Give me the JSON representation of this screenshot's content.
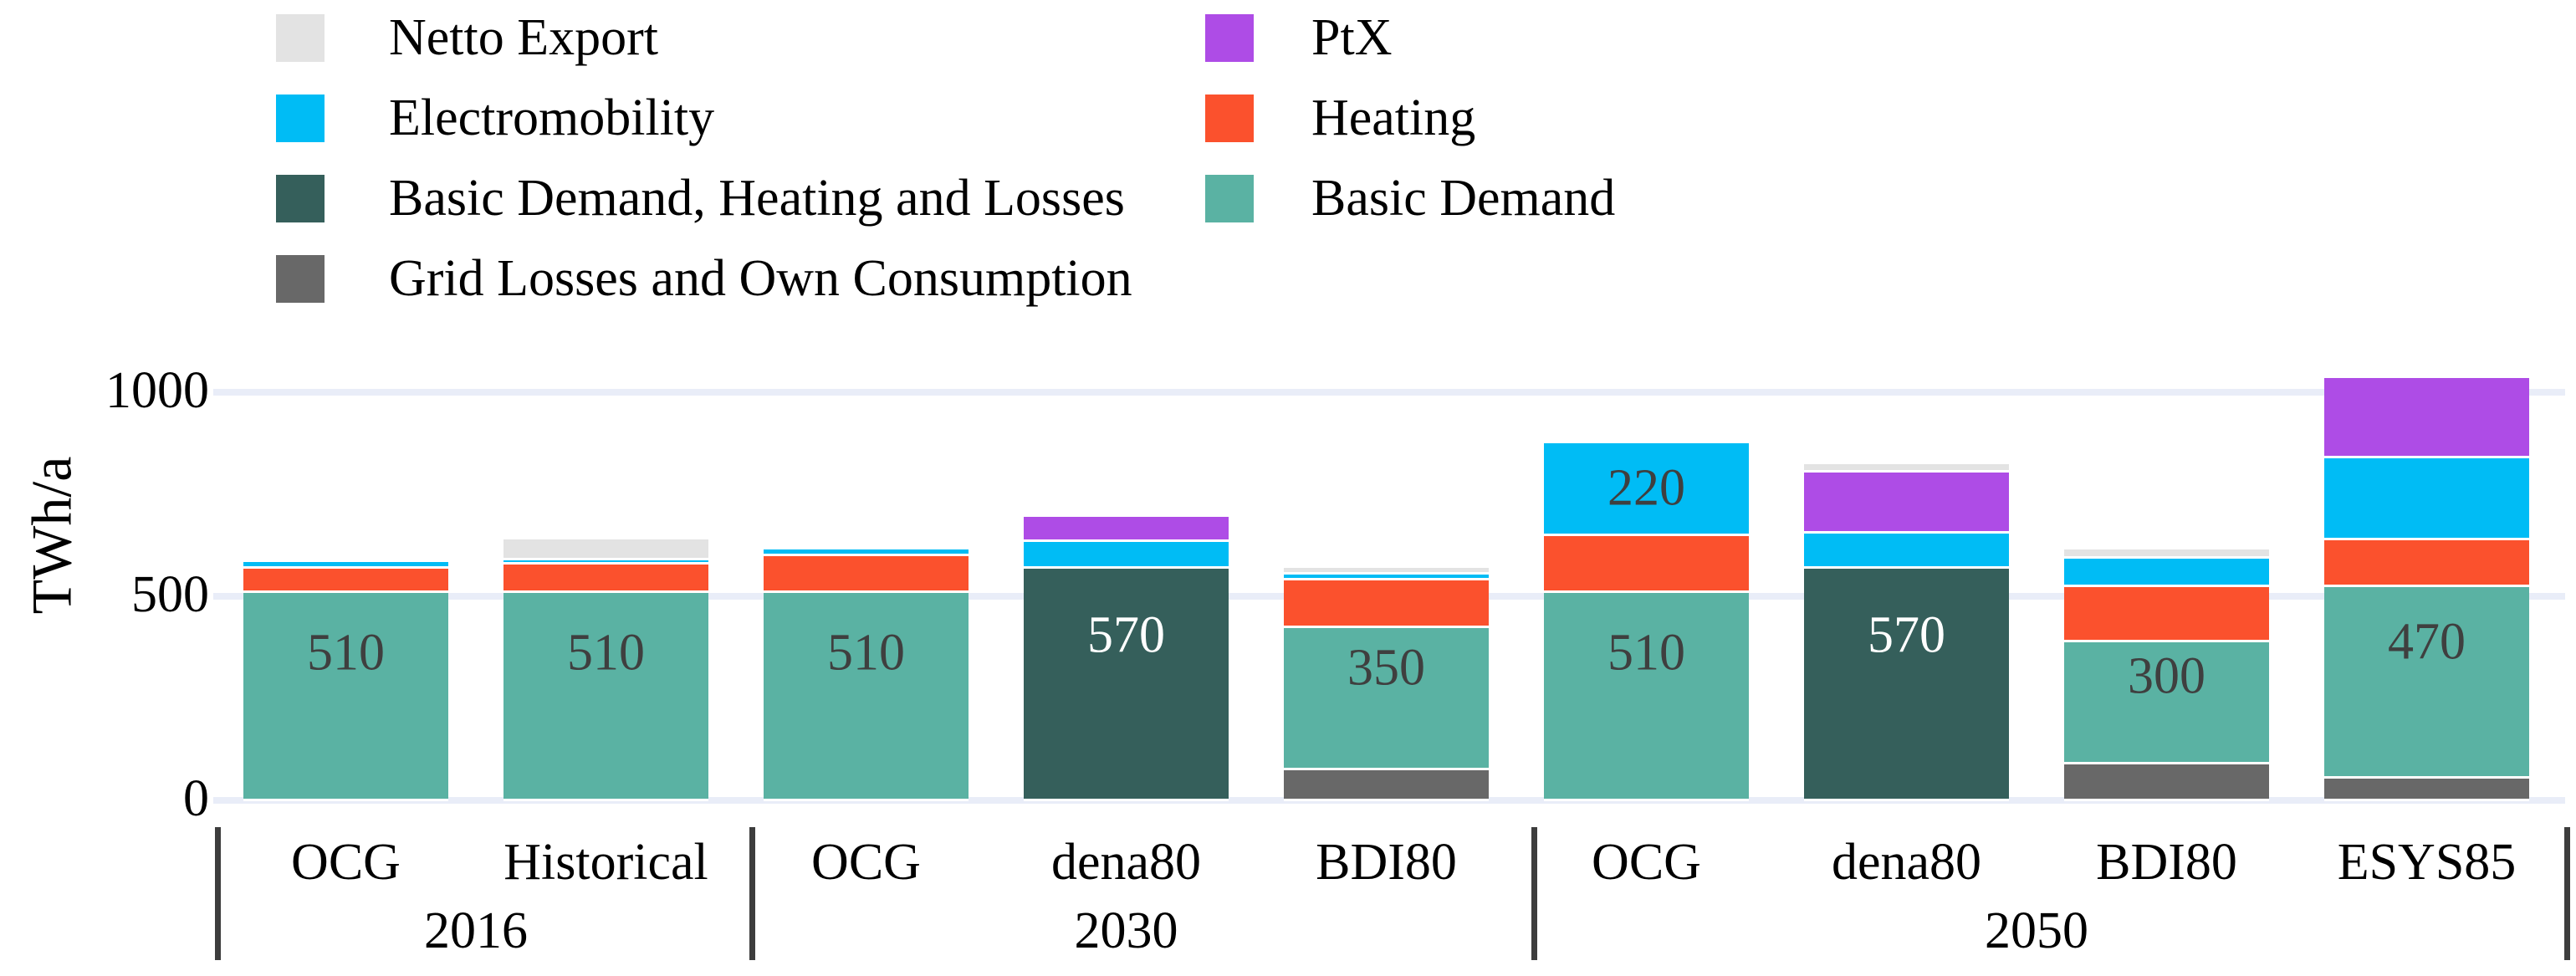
{
  "y_axis": {
    "title": "TWh/a",
    "ticks": [
      {
        "value": 0,
        "label": "0"
      },
      {
        "value": 500,
        "label": "500"
      },
      {
        "value": 1000,
        "label": "1000"
      }
    ]
  },
  "colors": {
    "netto": "#E3E3E3",
    "elec": "#00BCF5",
    "bdhl": "#355F5B",
    "grid": "#686868",
    "ptx": "#AE4CE6",
    "heating": "#FB512D",
    "basic": "#5AB2A3",
    "gridline": "#E9EDF8",
    "separator": "#3D3D3D",
    "value_label_dark": "#3F3F3F",
    "value_label_light": "#FFFFFF"
  },
  "legend": {
    "columns": [
      {
        "items": [
          {
            "key": "netto",
            "label": "Netto Export"
          },
          {
            "key": "elec",
            "label": "Electromobility"
          },
          {
            "key": "bdhl",
            "label": "Basic Demand, Heating and Losses"
          },
          {
            "key": "grid",
            "label": "Grid Losses and Own Consumption"
          }
        ]
      },
      {
        "items": [
          {
            "key": "ptx",
            "label": "PtX"
          },
          {
            "key": "heating",
            "label": "Heating"
          },
          {
            "key": "basic",
            "label": "Basic Demand"
          }
        ]
      }
    ]
  },
  "groups": [
    {
      "year": "2016",
      "bars": [
        {
          "label": "OCG",
          "segments": [
            {
              "key": "basic",
              "value": 510,
              "label": "510",
              "label_color": "#3F3F3F",
              "label_pos": "upper"
            },
            {
              "key": "heating",
              "value": 60
            },
            {
              "key": "elec",
              "value": 10
            }
          ]
        },
        {
          "label": "Historical",
          "segments": [
            {
              "key": "basic",
              "value": 510,
              "label": "510",
              "label_color": "#3F3F3F",
              "label_pos": "upper"
            },
            {
              "key": "heating",
              "value": 70
            },
            {
              "key": "elec",
              "value": 10
            },
            {
              "key": "netto",
              "value": 45
            }
          ]
        }
      ]
    },
    {
      "year": "2030",
      "bars": [
        {
          "label": "OCG",
          "segments": [
            {
              "key": "basic",
              "value": 510,
              "label": "510",
              "label_color": "#3F3F3F",
              "label_pos": "upper"
            },
            {
              "key": "heating",
              "value": 90
            },
            {
              "key": "elec",
              "value": 10
            }
          ]
        },
        {
          "label": "dena80",
          "segments": [
            {
              "key": "bdhl",
              "value": 570,
              "label": "570",
              "label_color": "#FFFFFF",
              "label_pos": "upper"
            },
            {
              "key": "elec",
              "value": 65
            },
            {
              "key": "ptx",
              "value": 55
            }
          ]
        },
        {
          "label": "BDI80",
          "segments": [
            {
              "key": "grid",
              "value": 75
            },
            {
              "key": "basic",
              "value": 350,
              "label": "350",
              "label_color": "#3F3F3F",
              "label_pos": "upper"
            },
            {
              "key": "heating",
              "value": 115
            },
            {
              "key": "elec",
              "value": 15
            },
            {
              "key": "netto",
              "value": 10
            }
          ]
        }
      ]
    },
    {
      "year": "2050",
      "bars": [
        {
          "label": "OCG",
          "segments": [
            {
              "key": "basic",
              "value": 510,
              "label": "510",
              "label_color": "#3F3F3F",
              "label_pos": "upper"
            },
            {
              "key": "heating",
              "value": 140
            },
            {
              "key": "elec",
              "value": 220,
              "label": "220",
              "label_color": "#3F3F3F",
              "label_pos": "center"
            }
          ]
        },
        {
          "label": "dena80",
          "segments": [
            {
              "key": "bdhl",
              "value": 570,
              "label": "570",
              "label_color": "#FFFFFF",
              "label_pos": "upper"
            },
            {
              "key": "elec",
              "value": 85
            },
            {
              "key": "ptx",
              "value": 150
            },
            {
              "key": "netto",
              "value": 15
            }
          ]
        },
        {
          "label": "BDI80",
          "segments": [
            {
              "key": "grid",
              "value": 90
            },
            {
              "key": "basic",
              "value": 300,
              "label": "300",
              "label_color": "#3F3F3F",
              "label_pos": "upper"
            },
            {
              "key": "heating",
              "value": 135
            },
            {
              "key": "elec",
              "value": 70
            },
            {
              "key": "netto",
              "value": 15
            }
          ]
        },
        {
          "label": "ESYS85",
          "segments": [
            {
              "key": "grid",
              "value": 55
            },
            {
              "key": "basic",
              "value": 470,
              "label": "470",
              "label_color": "#3F3F3F",
              "label_pos": "upper"
            },
            {
              "key": "heating",
              "value": 115
            },
            {
              "key": "elec",
              "value": 200
            },
            {
              "key": "ptx",
              "value": 190
            }
          ]
        }
      ]
    }
  ],
  "chart_data": {
    "type": "bar",
    "stacked": true,
    "title": "",
    "xlabel": "",
    "ylabel": "TWh/a",
    "ylim": [
      0,
      1000
    ],
    "grid": true,
    "legend_position": "top-left, two columns",
    "categories": [
      "OCG 2016",
      "Historical 2016",
      "OCG 2030",
      "dena80 2030",
      "BDI80 2030",
      "OCG 2050",
      "dena80 2050",
      "BDI80 2050",
      "ESYS85 2050"
    ],
    "group_years": [
      "2016",
      "2030",
      "2050"
    ],
    "series": [
      {
        "name": "Grid Losses and Own Consumption",
        "color": "#686868",
        "values": [
          0,
          0,
          0,
          0,
          75,
          0,
          0,
          90,
          55
        ]
      },
      {
        "name": "Basic Demand",
        "color": "#5AB2A3",
        "values": [
          510,
          510,
          510,
          0,
          350,
          510,
          0,
          300,
          470
        ]
      },
      {
        "name": "Basic Demand, Heating and Losses",
        "color": "#355F5B",
        "values": [
          0,
          0,
          0,
          570,
          0,
          0,
          570,
          0,
          0
        ]
      },
      {
        "name": "Heating",
        "color": "#FB512D",
        "values": [
          60,
          70,
          90,
          0,
          115,
          140,
          0,
          135,
          115
        ]
      },
      {
        "name": "Electromobility",
        "color": "#00BCF5",
        "values": [
          10,
          10,
          10,
          65,
          15,
          220,
          85,
          70,
          200
        ]
      },
      {
        "name": "PtX",
        "color": "#AE4CE6",
        "values": [
          0,
          0,
          0,
          55,
          0,
          0,
          150,
          0,
          190
        ]
      },
      {
        "name": "Netto Export",
        "color": "#E3E3E3",
        "values": [
          0,
          45,
          0,
          0,
          10,
          0,
          15,
          15,
          0
        ]
      }
    ],
    "totals": [
      580,
      635,
      610,
      690,
      565,
      870,
      820,
      610,
      1030
    ],
    "value_labels": [
      "510",
      "510",
      "510",
      "570",
      "350",
      "510 / 220",
      "570",
      "300",
      "470"
    ]
  }
}
